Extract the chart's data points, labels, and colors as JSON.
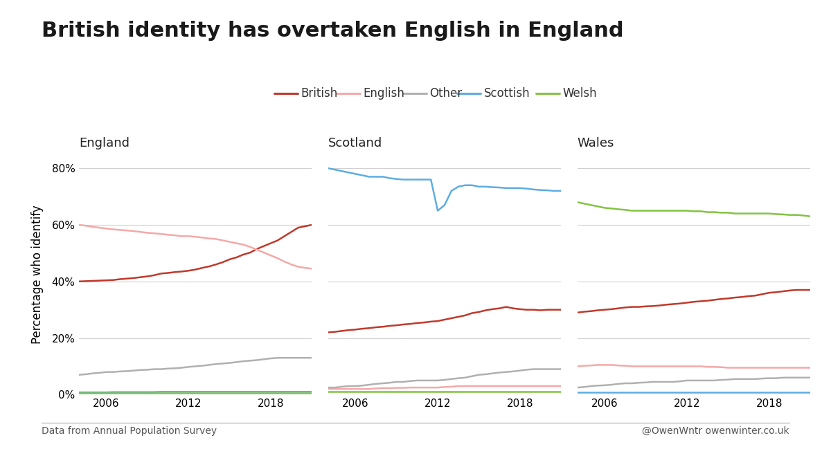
{
  "title": "British identity has overtaken English in England",
  "ylabel": "Percentage who identify",
  "footnote_left": "Data from Annual Population Survey",
  "footnote_right": "@OwenWntr owenwinter.co.uk",
  "legend_items": [
    "British",
    "English",
    "Other",
    "Scottish",
    "Welsh"
  ],
  "colors": {
    "British": "#c0392b",
    "English": "#f4a9a8",
    "Other": "#b0b0b0",
    "Scottish": "#5dade2",
    "Welsh": "#82c341"
  },
  "panels": [
    "England",
    "Scotland",
    "Wales"
  ],
  "years": [
    2004,
    2004.5,
    2005,
    2005.5,
    2006,
    2006.5,
    2007,
    2007.5,
    2008,
    2008.5,
    2009,
    2009.5,
    2010,
    2010.5,
    2011,
    2011.5,
    2012,
    2012.5,
    2013,
    2013.5,
    2014,
    2014.5,
    2015,
    2015.5,
    2016,
    2016.5,
    2017,
    2017.5,
    2018,
    2018.5,
    2019,
    2019.5,
    2020,
    2020.5,
    2021
  ],
  "england": {
    "British": [
      40.0,
      40.1,
      40.2,
      40.3,
      40.4,
      40.5,
      40.8,
      41.0,
      41.2,
      41.5,
      41.8,
      42.2,
      42.8,
      43.0,
      43.3,
      43.5,
      43.8,
      44.2,
      44.8,
      45.3,
      46.0,
      46.8,
      47.8,
      48.5,
      49.5,
      50.2,
      51.5,
      52.5,
      53.5,
      54.5,
      56.0,
      57.5,
      59.0,
      59.5,
      60.0
    ],
    "English": [
      60.0,
      59.7,
      59.3,
      59.0,
      58.7,
      58.4,
      58.2,
      58.0,
      57.8,
      57.5,
      57.2,
      57.0,
      56.8,
      56.5,
      56.3,
      56.0,
      56.0,
      55.8,
      55.5,
      55.2,
      55.0,
      54.5,
      54.0,
      53.5,
      53.0,
      52.2,
      51.2,
      50.2,
      49.2,
      48.2,
      47.0,
      46.0,
      45.2,
      44.8,
      44.5
    ],
    "Other": [
      7.0,
      7.2,
      7.5,
      7.7,
      8.0,
      8.0,
      8.2,
      8.3,
      8.5,
      8.7,
      8.8,
      9.0,
      9.0,
      9.2,
      9.3,
      9.5,
      9.8,
      10.0,
      10.2,
      10.5,
      10.8,
      11.0,
      11.2,
      11.5,
      11.8,
      12.0,
      12.2,
      12.5,
      12.8,
      13.0,
      13.0,
      13.0,
      13.0,
      13.0,
      13.0
    ],
    "Scottish": [
      0.8,
      0.8,
      0.8,
      0.8,
      0.8,
      0.9,
      0.9,
      0.9,
      0.9,
      0.9,
      0.9,
      0.9,
      1.0,
      1.0,
      1.0,
      1.0,
      1.0,
      1.0,
      1.0,
      1.0,
      1.0,
      1.0,
      1.0,
      1.0,
      1.0,
      1.0,
      1.0,
      1.0,
      1.0,
      1.0,
      1.0,
      1.0,
      1.0,
      1.0,
      1.0
    ],
    "Welsh": [
      0.5,
      0.5,
      0.5,
      0.5,
      0.5,
      0.5,
      0.5,
      0.5,
      0.5,
      0.5,
      0.5,
      0.5,
      0.5,
      0.5,
      0.5,
      0.5,
      0.5,
      0.5,
      0.5,
      0.5,
      0.5,
      0.5,
      0.5,
      0.5,
      0.5,
      0.5,
      0.5,
      0.5,
      0.5,
      0.5,
      0.5,
      0.5,
      0.5,
      0.5,
      0.5
    ]
  },
  "scotland": {
    "British": [
      22.0,
      22.2,
      22.5,
      22.8,
      23.0,
      23.3,
      23.5,
      23.8,
      24.0,
      24.3,
      24.5,
      24.8,
      25.0,
      25.3,
      25.5,
      25.8,
      26.0,
      26.5,
      27.0,
      27.5,
      28.0,
      28.8,
      29.2,
      29.8,
      30.2,
      30.5,
      31.0,
      30.5,
      30.2,
      30.0,
      30.0,
      29.8,
      30.0,
      30.0,
      30.0
    ],
    "English": [
      2.0,
      2.0,
      2.0,
      2.0,
      2.0,
      2.0,
      2.0,
      2.2,
      2.3,
      2.3,
      2.4,
      2.4,
      2.5,
      2.5,
      2.5,
      2.5,
      2.5,
      2.7,
      2.8,
      3.0,
      3.0,
      3.0,
      3.0,
      3.0,
      3.0,
      3.0,
      3.0,
      3.0,
      3.0,
      3.0,
      3.0,
      3.0,
      3.0,
      3.0,
      3.0
    ],
    "Other": [
      2.5,
      2.5,
      2.8,
      3.0,
      3.0,
      3.2,
      3.5,
      3.8,
      4.0,
      4.2,
      4.5,
      4.5,
      4.8,
      5.0,
      5.0,
      5.0,
      5.0,
      5.2,
      5.5,
      5.8,
      6.0,
      6.5,
      7.0,
      7.2,
      7.5,
      7.8,
      8.0,
      8.2,
      8.5,
      8.8,
      9.0,
      9.0,
      9.0,
      9.0,
      9.0
    ],
    "Scottish": [
      80.0,
      79.5,
      79.0,
      78.5,
      78.0,
      77.5,
      77.0,
      77.0,
      77.0,
      76.5,
      76.2,
      76.0,
      76.0,
      76.0,
      76.0,
      76.0,
      65.0,
      67.0,
      72.0,
      73.5,
      74.0,
      74.0,
      73.5,
      73.5,
      73.3,
      73.2,
      73.0,
      73.0,
      73.0,
      72.8,
      72.5,
      72.3,
      72.2,
      72.0,
      72.0
    ],
    "Welsh": [
      1.0,
      1.0,
      1.0,
      1.0,
      1.0,
      1.0,
      1.0,
      1.0,
      1.0,
      1.0,
      1.0,
      1.0,
      1.0,
      1.0,
      1.0,
      1.0,
      1.0,
      1.0,
      1.0,
      1.0,
      1.0,
      1.0,
      1.0,
      1.0,
      1.0,
      1.0,
      1.0,
      1.0,
      1.0,
      1.0,
      1.0,
      1.0,
      1.0,
      1.0,
      1.0
    ]
  },
  "wales": {
    "British": [
      29.0,
      29.3,
      29.5,
      29.8,
      30.0,
      30.2,
      30.5,
      30.8,
      31.0,
      31.0,
      31.2,
      31.3,
      31.5,
      31.8,
      32.0,
      32.2,
      32.5,
      32.8,
      33.0,
      33.2,
      33.5,
      33.8,
      34.0,
      34.3,
      34.5,
      34.8,
      35.0,
      35.5,
      36.0,
      36.2,
      36.5,
      36.8,
      37.0,
      37.0,
      37.0
    ],
    "English": [
      10.0,
      10.2,
      10.3,
      10.5,
      10.5,
      10.5,
      10.3,
      10.2,
      10.0,
      10.0,
      10.0,
      10.0,
      10.0,
      10.0,
      10.0,
      10.0,
      10.0,
      10.0,
      10.0,
      9.8,
      9.8,
      9.7,
      9.5,
      9.5,
      9.5,
      9.5,
      9.5,
      9.5,
      9.5,
      9.5,
      9.5,
      9.5,
      9.5,
      9.5,
      9.5
    ],
    "Other": [
      2.5,
      2.7,
      3.0,
      3.2,
      3.3,
      3.5,
      3.8,
      4.0,
      4.0,
      4.2,
      4.3,
      4.5,
      4.5,
      4.5,
      4.5,
      4.7,
      5.0,
      5.0,
      5.0,
      5.0,
      5.0,
      5.2,
      5.3,
      5.5,
      5.5,
      5.5,
      5.5,
      5.7,
      5.8,
      5.8,
      6.0,
      6.0,
      6.0,
      6.0,
      6.0
    ],
    "Scottish": [
      0.8,
      0.8,
      0.8,
      0.8,
      0.8,
      0.8,
      0.8,
      0.8,
      0.8,
      0.8,
      0.8,
      0.8,
      0.8,
      0.8,
      0.8,
      0.8,
      0.8,
      0.8,
      0.8,
      0.8,
      0.8,
      0.8,
      0.8,
      0.8,
      0.8,
      0.8,
      0.8,
      0.8,
      0.8,
      0.8,
      0.8,
      0.8,
      0.8,
      0.8,
      0.8
    ],
    "Welsh": [
      68.0,
      67.5,
      67.0,
      66.5,
      66.0,
      65.8,
      65.5,
      65.3,
      65.0,
      65.0,
      65.0,
      65.0,
      65.0,
      65.0,
      65.0,
      65.0,
      65.0,
      64.8,
      64.8,
      64.5,
      64.5,
      64.3,
      64.3,
      64.0,
      64.0,
      64.0,
      64.0,
      64.0,
      64.0,
      63.8,
      63.7,
      63.5,
      63.5,
      63.3,
      63.0
    ]
  },
  "ylim": [
    0,
    85
  ],
  "yticks": [
    0,
    20,
    40,
    60,
    80
  ],
  "ytick_labels": [
    "0%",
    "20%",
    "40%",
    "60%",
    "80%"
  ],
  "xlim": [
    2004,
    2021
  ],
  "xticks": [
    2006,
    2012,
    2018
  ],
  "background_color": "#ffffff",
  "grid_color": "#d0d0d0",
  "title_fontsize": 22,
  "label_fontsize": 12,
  "tick_fontsize": 11,
  "legend_fontsize": 12,
  "panel_label_fontsize": 13,
  "line_width": 1.8
}
